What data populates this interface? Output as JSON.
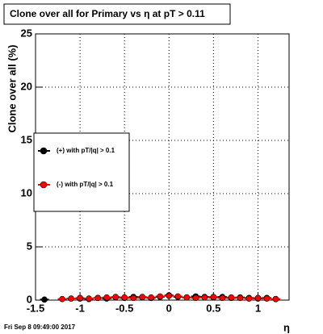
{
  "chart_data": {
    "type": "scatter",
    "title": "Clone  over all for Primary vs  η at pT > 0.11",
    "x_label": "η",
    "y_label": "Clone  over all (%)",
    "footer": "Fri Sep  8 09:49:00 2017",
    "xlim": [
      -1.5,
      1.35
    ],
    "ylim": [
      0,
      25
    ],
    "xticks": [
      -1.5,
      -1,
      -0.5,
      0,
      0.5,
      1
    ],
    "yticks": [
      0,
      5,
      10,
      15,
      20,
      25
    ],
    "grid": true,
    "legend": "left",
    "series": [
      {
        "name": "(+) with pT/|q| > 0.1",
        "color": "#000000",
        "x": [
          -1.4,
          -1.0,
          -0.9,
          -0.8,
          -0.7,
          -0.6,
          -0.5,
          -0.4,
          -0.3,
          -0.2,
          -0.1,
          0.0,
          0.1,
          0.2,
          0.3,
          0.4,
          0.5,
          0.6,
          0.7,
          0.8,
          0.9,
          1.0,
          1.1,
          1.2
        ],
        "values": [
          0.05,
          0.15,
          0.1,
          0.2,
          0.15,
          0.25,
          0.2,
          0.3,
          0.25,
          0.2,
          0.3,
          0.45,
          0.3,
          0.25,
          0.35,
          0.3,
          0.25,
          0.3,
          0.2,
          0.25,
          0.2,
          0.15,
          0.2,
          0.1
        ]
      },
      {
        "name": "(-) with pT/|q| > 0.1",
        "color": "#ff0000",
        "x": [
          -1.2,
          -1.1,
          -1.0,
          -0.9,
          -0.8,
          -0.7,
          -0.6,
          -0.5,
          -0.4,
          -0.3,
          -0.2,
          -0.1,
          0.0,
          0.1,
          0.2,
          0.3,
          0.4,
          0.5,
          0.6,
          0.7,
          0.8,
          0.9,
          1.0,
          1.1,
          1.2
        ],
        "values": [
          0.1,
          0.15,
          0.2,
          0.15,
          0.2,
          0.25,
          0.3,
          0.25,
          0.2,
          0.3,
          0.25,
          0.35,
          0.4,
          0.35,
          0.25,
          0.2,
          0.25,
          0.3,
          0.2,
          0.25,
          0.2,
          0.15,
          0.2,
          0.15,
          0.1
        ]
      }
    ]
  }
}
